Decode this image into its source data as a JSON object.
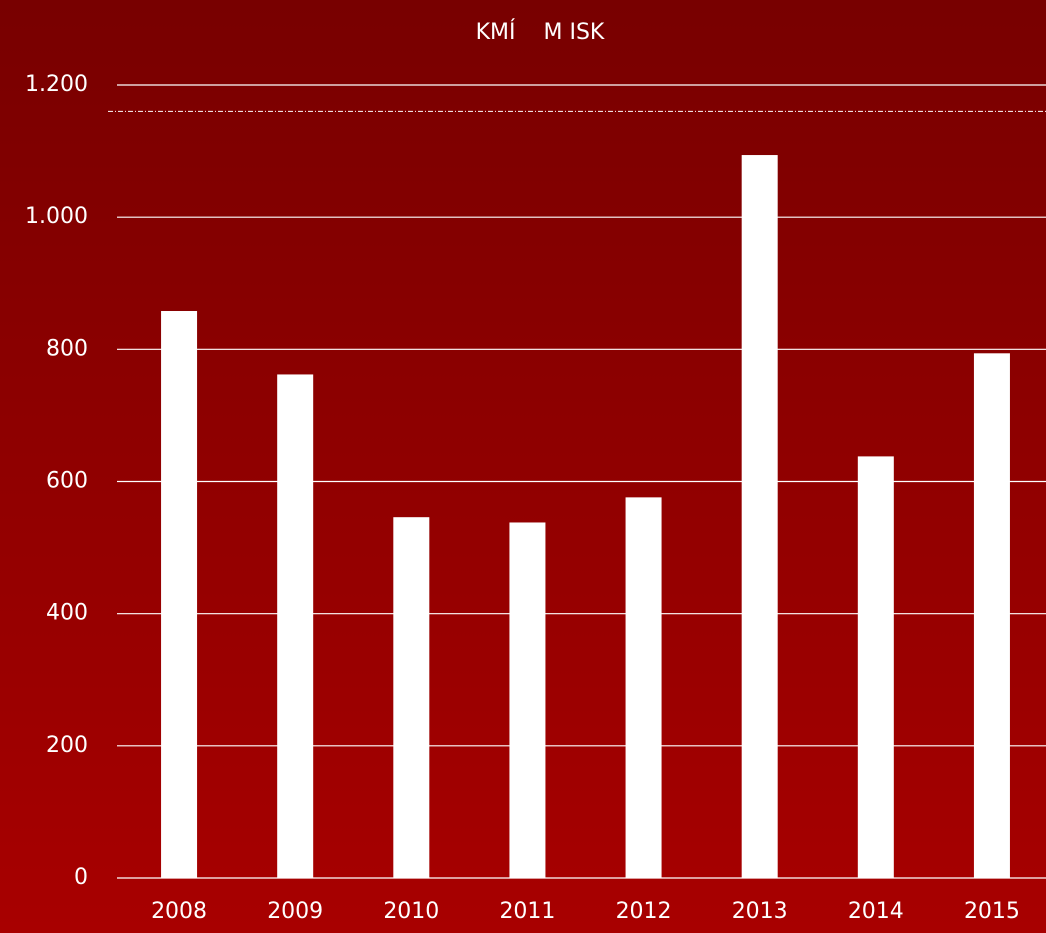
{
  "chart_data": {
    "type": "bar",
    "title": "KMÍ    M ISK",
    "categories": [
      "2008",
      "2009",
      "2010",
      "2011",
      "2012",
      "2013",
      "2014",
      "2015"
    ],
    "values": [
      858,
      762,
      546,
      538,
      576,
      1094,
      638,
      794
    ],
    "color": "#ffffff",
    "ylim": [
      0,
      1200
    ],
    "yticks": [
      0,
      200,
      400,
      600,
      800,
      {
        "value": 1000,
        "label": "1.000"
      },
      {
        "value": 1200,
        "label": "1.200"
      }
    ],
    "grid": true,
    "reference_line": 1160
  }
}
